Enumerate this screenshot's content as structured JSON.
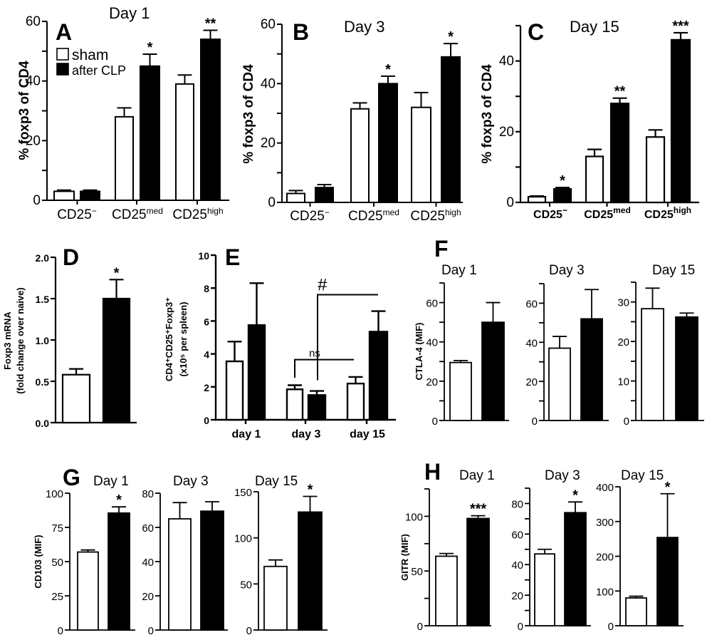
{
  "figure": {
    "legend": {
      "sham": "sham",
      "clp": "after CLP"
    },
    "colors": {
      "sham": "#ffffff",
      "clp": "#000000",
      "stroke": "#000000"
    }
  },
  "chart_data": [
    {
      "id": "A",
      "type": "bar",
      "panel_letter": "A",
      "title": "Day 1",
      "ylabel": "% foxp3 of CD4",
      "xlabel": "",
      "ylim": [
        0,
        60
      ],
      "yticks": [
        0,
        20,
        40,
        60
      ],
      "minor_yticks": [
        10,
        30,
        50
      ],
      "categories": [
        {
          "base": "CD25",
          "sup": "−"
        },
        {
          "base": "CD25",
          "sup": "med"
        },
        {
          "base": "CD25",
          "sup": "high"
        }
      ],
      "series": [
        {
          "name": "sham",
          "values": [
            3,
            28,
            39
          ],
          "error_upper": [
            3.4,
            31,
            42
          ]
        },
        {
          "name": "after CLP",
          "values": [
            3,
            45,
            54
          ],
          "error_upper": [
            3.4,
            49,
            57
          ]
        }
      ],
      "significance": [
        {
          "category": 1,
          "series": 1,
          "label": "*"
        },
        {
          "category": 2,
          "series": 1,
          "label": "**"
        }
      ],
      "legend": "top-left"
    },
    {
      "id": "B",
      "type": "bar",
      "panel_letter": "B",
      "title": "Day 3",
      "ylabel": "% foxp3 of CD4",
      "xlabel": "",
      "ylim": [
        0,
        60
      ],
      "yticks": [
        0,
        20,
        40,
        60
      ],
      "minor_yticks": [
        10,
        30,
        50
      ],
      "categories": [
        {
          "base": "CD25",
          "sup": "−"
        },
        {
          "base": "CD25",
          "sup": "med"
        },
        {
          "base": "CD25",
          "sup": "high"
        }
      ],
      "series": [
        {
          "name": "sham",
          "values": [
            3,
            31.5,
            32
          ],
          "error_upper": [
            4,
            33.5,
            37
          ]
        },
        {
          "name": "after CLP",
          "values": [
            5,
            40,
            49
          ],
          "error_upper": [
            6,
            42.5,
            53.5
          ]
        }
      ],
      "significance": [
        {
          "category": 1,
          "series": 1,
          "label": "*"
        },
        {
          "category": 2,
          "series": 1,
          "label": "*"
        }
      ]
    },
    {
      "id": "C",
      "type": "bar",
      "panel_letter": "C",
      "title": "Day 15",
      "ylabel": "% foxp3 of CD4",
      "xlabel": "",
      "ylim": [
        0,
        50
      ],
      "yticks": [
        0,
        20,
        40
      ],
      "minor_yticks": [
        10,
        30,
        50
      ],
      "categories": [
        {
          "base": "CD25",
          "sup": "−"
        },
        {
          "base": "CD25",
          "sup": "med"
        },
        {
          "base": "CD25",
          "sup": "high"
        }
      ],
      "series": [
        {
          "name": "sham",
          "values": [
            1.6,
            13,
            18.5
          ],
          "error_upper": [
            1.8,
            15,
            20.5
          ]
        },
        {
          "name": "after CLP",
          "values": [
            3.8,
            28,
            46
          ],
          "error_upper": [
            4.2,
            29.5,
            48
          ]
        }
      ],
      "significance": [
        {
          "category": 0,
          "series": 1,
          "label": "*"
        },
        {
          "category": 1,
          "series": 1,
          "label": "**"
        },
        {
          "category": 2,
          "series": 1,
          "label": "***"
        }
      ]
    },
    {
      "id": "D",
      "type": "bar",
      "panel_letter": "D",
      "title": "",
      "ylabel": "Foxp3 mRNA",
      "ylabel2": "(fold change over naive)",
      "ylim": [
        0,
        2.0
      ],
      "yticks": [
        0.0,
        0.5,
        1.0,
        1.5,
        2.0
      ],
      "ytick_labels": [
        "0.0",
        "0.5",
        "1.0",
        "1.5",
        "2.0"
      ],
      "minor_yticks": [],
      "categories": [
        {
          "base": "",
          "sup": ""
        }
      ],
      "series": [
        {
          "name": "sham",
          "values": [
            0.58
          ],
          "error_upper": [
            0.65
          ]
        },
        {
          "name": "after CLP",
          "values": [
            1.5
          ],
          "error_upper": [
            1.73
          ]
        }
      ],
      "significance": [
        {
          "category": 0,
          "series": 1,
          "label": "*"
        }
      ]
    },
    {
      "id": "E",
      "type": "bar",
      "panel_letter": "E",
      "title": "",
      "ylabel": "CD4⁺CD25⁺Foxp3⁺",
      "ylabel2": "(x10⁵ per spleen)",
      "ylim": [
        0,
        10
      ],
      "yticks": [
        0,
        2,
        4,
        6,
        8,
        10
      ],
      "minor_yticks": [],
      "categories": [
        {
          "base": "day 1",
          "sup": ""
        },
        {
          "base": "day 3",
          "sup": ""
        },
        {
          "base": "day 15",
          "sup": ""
        }
      ],
      "series": [
        {
          "name": "sham",
          "values": [
            3.55,
            1.85,
            2.2
          ],
          "error_upper": [
            4.75,
            2.1,
            2.6
          ]
        },
        {
          "name": "after CLP",
          "values": [
            5.75,
            1.5,
            5.35
          ],
          "error_upper": [
            8.3,
            1.75,
            6.6
          ]
        }
      ],
      "annotations": [
        {
          "label": "ns",
          "comparison": "day 3 sham vs day 15 sham"
        },
        {
          "label": "#",
          "comparison": "day 3 after CLP vs day 15 after CLP"
        }
      ]
    },
    {
      "id": "F1",
      "type": "bar",
      "panel_letter": "F",
      "title": "Day 1",
      "ylabel": "CTLA-4 (MIF)",
      "ylim": [
        0,
        70
      ],
      "yticks": [
        0,
        20,
        40,
        60
      ],
      "minor_yticks": [
        10,
        30,
        50,
        70
      ],
      "categories": [
        {
          "base": "",
          "sup": ""
        }
      ],
      "series": [
        {
          "name": "sham",
          "values": [
            29.5
          ],
          "error_upper": [
            30.5
          ]
        },
        {
          "name": "after CLP",
          "values": [
            50
          ],
          "error_upper": [
            60
          ]
        }
      ]
    },
    {
      "id": "F2",
      "type": "bar",
      "panel_letter": "",
      "title": "Day 3",
      "ylabel": "",
      "ylim": [
        0,
        70
      ],
      "yticks": [
        0,
        20,
        40,
        60
      ],
      "minor_yticks": [
        10,
        30,
        50,
        70
      ],
      "categories": [
        {
          "base": "",
          "sup": ""
        }
      ],
      "series": [
        {
          "name": "sham",
          "values": [
            37
          ],
          "error_upper": [
            43
          ]
        },
        {
          "name": "after CLP",
          "values": [
            52
          ],
          "error_upper": [
            67
          ]
        }
      ]
    },
    {
      "id": "F3",
      "type": "bar",
      "panel_letter": "",
      "title": "Day 15",
      "ylabel": "",
      "ylim": [
        0,
        35
      ],
      "yticks": [
        0,
        10,
        20,
        30
      ],
      "minor_yticks": [
        5,
        15,
        25,
        35
      ],
      "categories": [
        {
          "base": "",
          "sup": ""
        }
      ],
      "series": [
        {
          "name": "sham",
          "values": [
            28.3
          ],
          "error_upper": [
            33.5
          ]
        },
        {
          "name": "after CLP",
          "values": [
            26.2
          ],
          "error_upper": [
            27.2
          ]
        }
      ]
    },
    {
      "id": "G1",
      "type": "bar",
      "panel_letter": "G",
      "title": "Day 1",
      "ylabel": "CD103 (MIF)",
      "ylim": [
        0,
        100
      ],
      "yticks": [
        0,
        25,
        50,
        75,
        100
      ],
      "minor_yticks": [],
      "categories": [
        {
          "base": "",
          "sup": ""
        }
      ],
      "series": [
        {
          "name": "sham",
          "values": [
            57
          ],
          "error_upper": [
            58.5
          ]
        },
        {
          "name": "after CLP",
          "values": [
            85.5
          ],
          "error_upper": [
            90
          ]
        }
      ],
      "significance": [
        {
          "category": 0,
          "series": 1,
          "label": "*"
        }
      ]
    },
    {
      "id": "G2",
      "type": "bar",
      "panel_letter": "",
      "title": "Day 3",
      "ylabel": "",
      "ylim": [
        0,
        80
      ],
      "yticks": [
        0,
        20,
        40,
        60,
        80
      ],
      "minor_yticks": [],
      "categories": [
        {
          "base": "",
          "sup": ""
        }
      ],
      "series": [
        {
          "name": "sham",
          "values": [
            65
          ],
          "error_upper": [
            74.5
          ]
        },
        {
          "name": "after CLP",
          "values": [
            69.5
          ],
          "error_upper": [
            75
          ]
        }
      ]
    },
    {
      "id": "G3",
      "type": "bar",
      "panel_letter": "",
      "title": "Day 15",
      "ylabel": "",
      "ylim": [
        0,
        150
      ],
      "yticks": [
        0,
        50,
        100,
        150
      ],
      "minor_yticks": [],
      "categories": [
        {
          "base": "",
          "sup": ""
        }
      ],
      "series": [
        {
          "name": "sham",
          "values": [
            69
          ],
          "error_upper": [
            76
          ]
        },
        {
          "name": "after CLP",
          "values": [
            128
          ],
          "error_upper": [
            145
          ]
        }
      ],
      "significance": [
        {
          "category": 0,
          "series": 1,
          "label": "*"
        }
      ]
    },
    {
      "id": "H1",
      "type": "bar",
      "panel_letter": "H",
      "title": "Day 1",
      "ylabel": "GITR (MIF)",
      "ylim": [
        0,
        125
      ],
      "yticks": [
        0,
        50,
        100
      ],
      "minor_yticks": [
        25,
        75,
        125
      ],
      "categories": [
        {
          "base": "",
          "sup": ""
        }
      ],
      "series": [
        {
          "name": "sham",
          "values": [
            63.5
          ],
          "error_upper": [
            66
          ]
        },
        {
          "name": "after CLP",
          "values": [
            98
          ],
          "error_upper": [
            100.5
          ]
        }
      ],
      "significance": [
        {
          "category": 0,
          "series": 1,
          "label": "***"
        }
      ]
    },
    {
      "id": "H2",
      "type": "bar",
      "panel_letter": "",
      "title": "Day 3",
      "ylabel": "",
      "ylim": [
        0,
        90
      ],
      "yticks": [
        0,
        20,
        40,
        60,
        80
      ],
      "minor_yticks": [
        10,
        30,
        50,
        70,
        90
      ],
      "categories": [
        {
          "base": "",
          "sup": ""
        }
      ],
      "series": [
        {
          "name": "sham",
          "values": [
            47
          ],
          "error_upper": [
            50
          ]
        },
        {
          "name": "after CLP",
          "values": [
            74
          ],
          "error_upper": [
            81
          ]
        }
      ],
      "significance": [
        {
          "category": 0,
          "series": 1,
          "label": "*"
        }
      ]
    },
    {
      "id": "H3",
      "type": "bar",
      "panel_letter": "",
      "title": "Day 15",
      "ylabel": "",
      "ylim": [
        0,
        400
      ],
      "yticks": [
        0,
        100,
        200,
        300,
        400
      ],
      "minor_yticks": [],
      "categories": [
        {
          "base": "",
          "sup": ""
        }
      ],
      "series": [
        {
          "name": "sham",
          "values": [
            80
          ],
          "error_upper": [
            85
          ]
        },
        {
          "name": "after CLP",
          "values": [
            254
          ],
          "error_upper": [
            380
          ]
        }
      ],
      "significance": [
        {
          "category": 0,
          "series": 1,
          "label": "*"
        }
      ]
    }
  ]
}
